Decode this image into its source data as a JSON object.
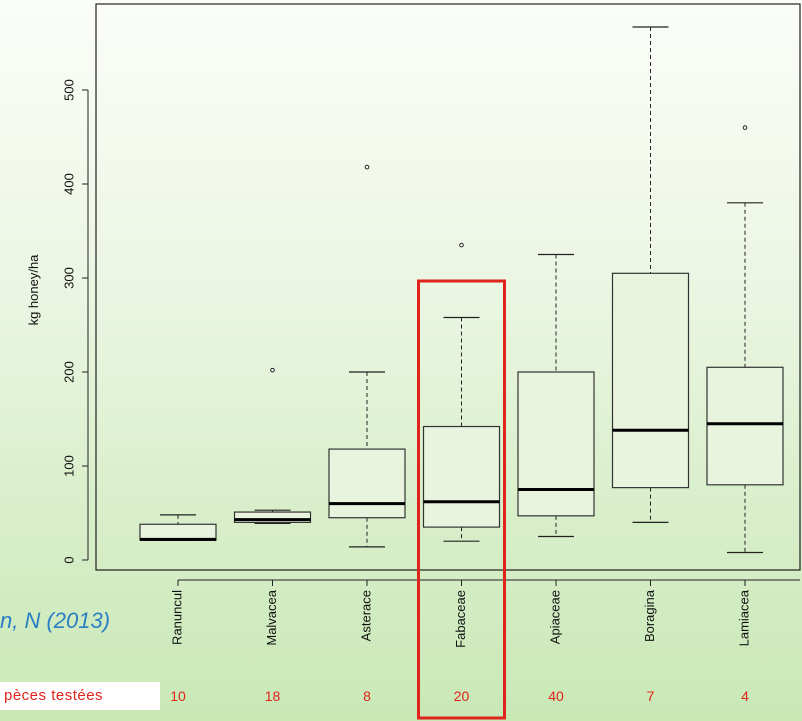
{
  "chart_data": {
    "type": "boxplot",
    "ylabel": "kg honey/ha",
    "ylim": [
      -10,
      590
    ],
    "yticks": [
      0,
      100,
      200,
      300,
      400,
      500
    ],
    "categories": [
      "Ranuncul",
      "Malvacea",
      "Asterace",
      "Fabaceae",
      "Apiaceae",
      "Boragina",
      "Lamiacea"
    ],
    "boxes": [
      {
        "whisker_low": 21,
        "q1": 21,
        "median": 22,
        "q3": 38,
        "whisker_high": 48,
        "outliers": []
      },
      {
        "whisker_low": 39,
        "q1": 40,
        "median": 43,
        "q3": 51,
        "whisker_high": 53,
        "outliers": [
          202
        ]
      },
      {
        "whisker_low": 14,
        "q1": 45,
        "median": 60,
        "q3": 118,
        "whisker_high": 200,
        "outliers": [
          418
        ]
      },
      {
        "whisker_low": 20,
        "q1": 35,
        "median": 62,
        "q3": 142,
        "whisker_high": 258,
        "outliers": [
          335
        ]
      },
      {
        "whisker_low": 25,
        "q1": 47,
        "median": 75,
        "q3": 200,
        "whisker_high": 325,
        "outliers": []
      },
      {
        "whisker_low": 40,
        "q1": 77,
        "median": 138,
        "q3": 305,
        "whisker_high": 567,
        "outliers": []
      },
      {
        "whisker_low": 8,
        "q1": 80,
        "median": 145,
        "q3": 205,
        "whisker_high": 380,
        "outliers": [
          460
        ]
      }
    ],
    "highlighted_category": "Fabaceae",
    "highlight_color": "#e0241b",
    "species_counts": [
      "10",
      "18",
      "8",
      "20",
      "40",
      "7",
      "4"
    ]
  },
  "citation": "n, N (2013)",
  "species_label": "pèces testées",
  "colors": {
    "count_text": "#e0241b",
    "citation_text": "#2a7fc4",
    "box_fill": "#e8f4de"
  }
}
